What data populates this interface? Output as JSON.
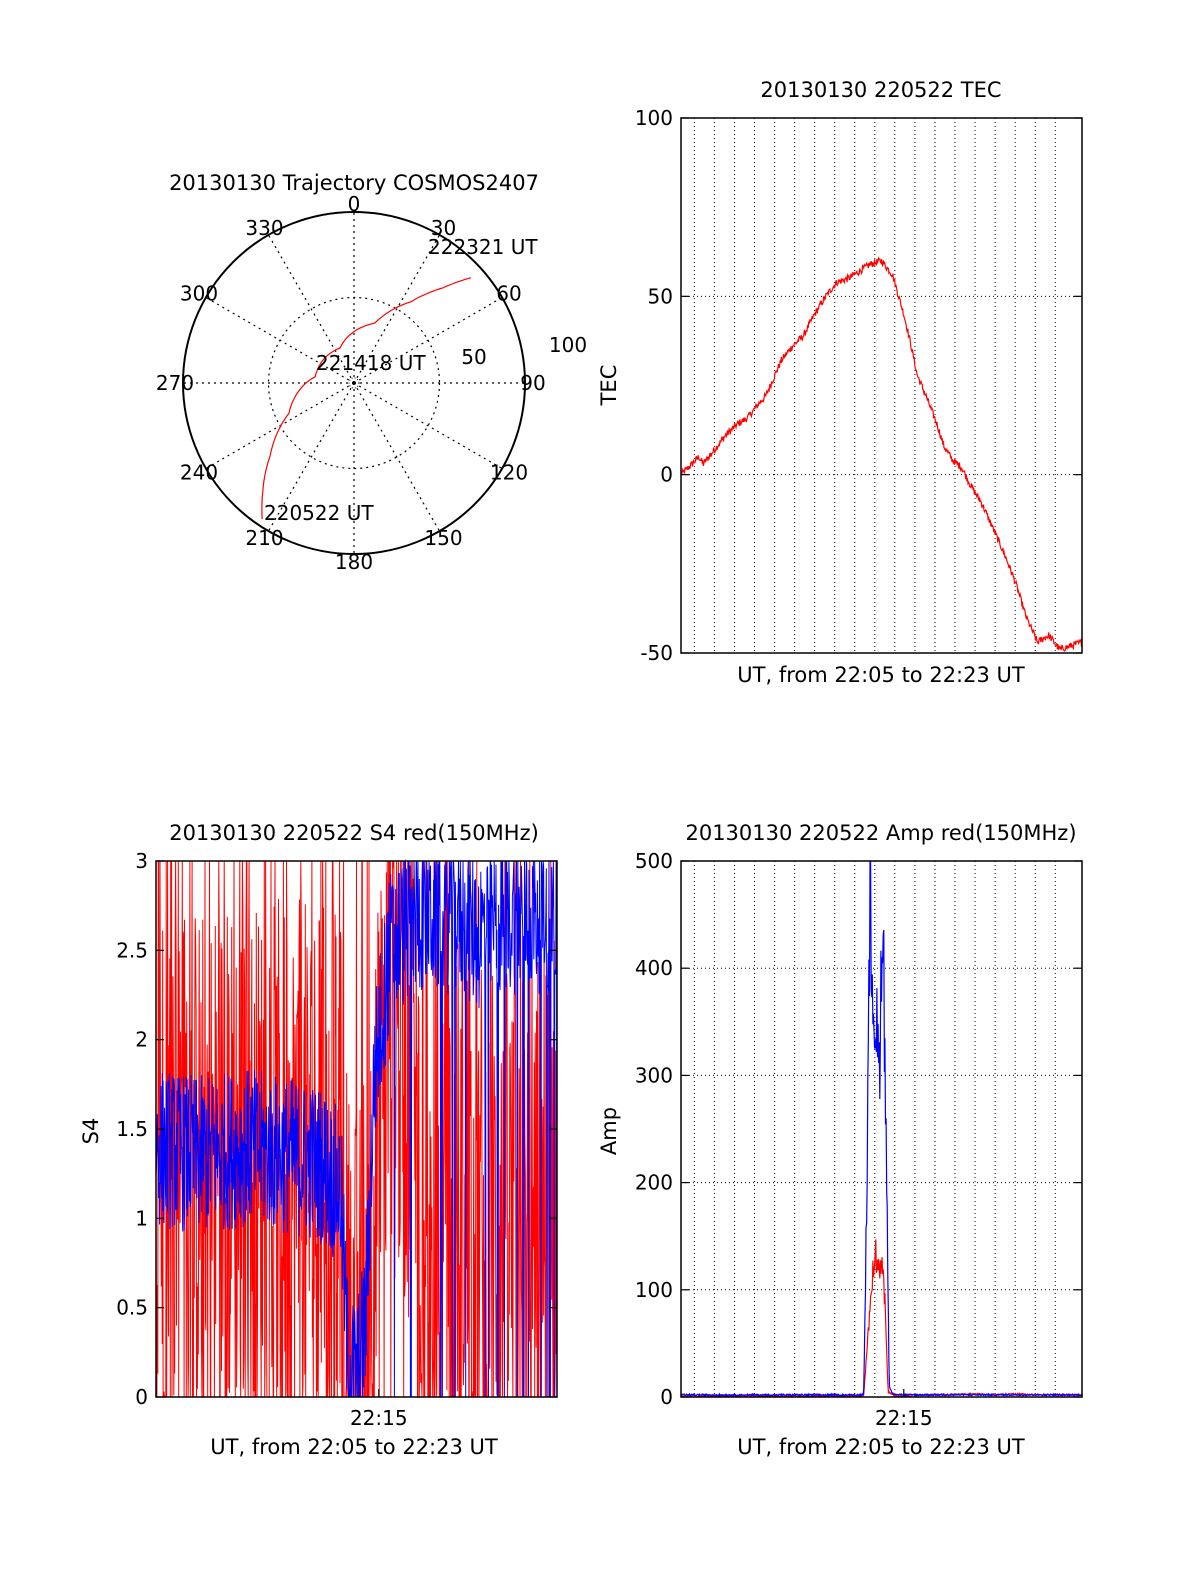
{
  "colors": {
    "red": "#ff0000",
    "blue": "#0000ff",
    "axis": "#000000",
    "grid": "#000000"
  },
  "chart_data": [
    {
      "id": "trajectory",
      "type": "polar",
      "title": "20130130 Trajectory COSMOS2407",
      "azimuth_labels": [
        "0",
        "30",
        "60",
        "90",
        "120",
        "150",
        "180",
        "210",
        "240",
        "270",
        "300",
        "330"
      ],
      "ring_labels": [
        "50",
        "100"
      ],
      "r_max": 100,
      "series": [
        {
          "color": "red",
          "points": [
            {
              "az": 214,
              "r": 96
            },
            {
              "az": 220,
              "r": 83
            },
            {
              "az": 229,
              "r": 65
            },
            {
              "az": 245,
              "r": 42
            },
            {
              "az": 279,
              "r": 23
            },
            {
              "az": 338,
              "r": 22
            },
            {
              "az": 19,
              "r": 37
            },
            {
              "az": 35,
              "r": 58
            },
            {
              "az": 43,
              "r": 76
            },
            {
              "az": 48,
              "r": 92
            }
          ]
        }
      ],
      "annotations": [
        {
          "text": "222321 UT",
          "at": {
            "az": 44,
            "r": 95
          }
        },
        {
          "text": "221418 UT",
          "at": {
            "az": 84,
            "r": 14
          }
        },
        {
          "text": "220522 UT",
          "at": {
            "az": 200,
            "r": 102
          }
        }
      ]
    },
    {
      "id": "tec",
      "type": "line",
      "title": "20130130 220522 TEC",
      "xlabel": "UT, from 22:05 to 22:23 UT",
      "ylabel": "TEC",
      "xlim": [
        0,
        18
      ],
      "ylim": [
        -50,
        100
      ],
      "yticks": [
        -50,
        0,
        50,
        100
      ],
      "xticks": [],
      "xgrid": [
        0.6,
        1.5,
        2.4,
        3.3,
        4.2,
        5.1,
        6.0,
        6.9,
        7.8,
        8.7,
        9.6,
        10.5,
        11.4,
        12.3,
        13.2,
        14.1,
        15.0,
        15.9,
        16.8
      ],
      "series": [
        {
          "color": "red",
          "x": [
            0,
            0.5,
            0.8,
            1.0,
            1.5,
            2.0,
            2.5,
            3.0,
            3.5,
            3.8,
            4.5,
            5.0,
            5.5,
            6.0,
            6.5,
            7.0,
            7.5,
            8.0,
            8.5,
            9.0,
            9.5,
            10.0,
            10.3,
            10.6,
            11.0,
            11.5,
            11.8,
            12.2,
            12.6,
            13.0,
            13.5,
            14.0,
            14.5,
            15.0,
            15.5,
            16.0,
            16.5,
            17.0,
            17.5,
            18.0
          ],
          "y": [
            0,
            3,
            5,
            3,
            7,
            11,
            14,
            16,
            20,
            22,
            32,
            36,
            39,
            45,
            50,
            54,
            55,
            57,
            59,
            60,
            56,
            45,
            37,
            28,
            22,
            14,
            8,
            4,
            2,
            -3,
            -8,
            -15,
            -22,
            -30,
            -40,
            -47,
            -45,
            -49,
            -48,
            -47
          ],
          "noise": 1.0
        }
      ]
    },
    {
      "id": "s4",
      "type": "line",
      "title": "20130130 220522 S4 red(150MHz)",
      "xlabel": "UT, from 22:05 to 22:23 UT",
      "ylabel": "S4",
      "xlim": [
        0,
        18
      ],
      "ylim": [
        0,
        3
      ],
      "yticks": [
        0,
        0.5,
        1,
        1.5,
        2,
        2.5,
        3
      ],
      "xticks": [
        {
          "value": 10,
          "label": "22:15"
        }
      ],
      "series": [
        {
          "color": "red",
          "x": [
            0,
            2,
            4,
            6,
            7.5,
            8.3,
            8.6,
            9.0,
            9.4,
            9.8,
            10.5,
            11.5,
            12.5,
            13.5,
            14.5,
            15.5,
            16.5,
            18
          ],
          "y": [
            1.3,
            1.3,
            1.3,
            1.3,
            1.3,
            1.2,
            0.3,
            0.15,
            0.5,
            1.0,
            2.2,
            1.8,
            0.5,
            1.2,
            1.0,
            0.9,
            1.0,
            1.2
          ],
          "noise": 1.5
        },
        {
          "color": "blue",
          "x": [
            0,
            2,
            4,
            6,
            7.5,
            8.3,
            8.6,
            9.0,
            9.4,
            9.8,
            10.5,
            11.5,
            12.5,
            13.5,
            14.5,
            15.5,
            16.5,
            18
          ],
          "y": [
            1.4,
            1.35,
            1.4,
            1.35,
            1.3,
            1.15,
            0.2,
            0.1,
            0.4,
            1.8,
            2.5,
            2.7,
            2.7,
            2.7,
            2.6,
            2.7,
            2.7,
            2.7
          ],
          "noise": 0.45
        }
      ]
    },
    {
      "id": "amp",
      "type": "line",
      "title": "20130130 220522 Amp red(150MHz)",
      "xlabel": "UT, from 22:05 to 22:23 UT",
      "ylabel": "Amp",
      "xlim": [
        0,
        18
      ],
      "ylim": [
        0,
        500
      ],
      "yticks": [
        0,
        100,
        200,
        300,
        400,
        500
      ],
      "xticks": [
        {
          "value": 10,
          "label": "22:15"
        }
      ],
      "xgrid": [
        0.6,
        1.5,
        2.4,
        3.3,
        4.2,
        5.1,
        6.0,
        6.9,
        7.8,
        8.7,
        9.6,
        10.5,
        11.4,
        12.3,
        13.2,
        14.1,
        15.0,
        15.9,
        16.8
      ],
      "series": [
        {
          "color": "red",
          "x": [
            0,
            8.0,
            8.2,
            8.4,
            8.55,
            8.7,
            8.85,
            9.0,
            9.15,
            9.3,
            9.6,
            10.0,
            11.0,
            12.0,
            13.0,
            14.0,
            15.0,
            16.0,
            17.0,
            18.0
          ],
          "y": [
            1,
            1,
            1,
            60,
            100,
            140,
            120,
            130,
            90,
            5,
            1,
            1,
            2,
            2,
            3,
            2,
            3,
            2,
            2,
            2
          ],
          "noise": 0.08
        },
        {
          "color": "blue",
          "x": [
            0,
            2.0,
            4.0,
            6.0,
            8.0,
            8.2,
            8.35,
            8.5,
            8.6,
            8.75,
            8.9,
            9.05,
            9.2,
            9.35,
            9.5,
            10.0,
            12.0,
            14.0,
            16.0,
            18.0
          ],
          "y": [
            2,
            2,
            2,
            2,
            2,
            3,
            200,
            480,
            380,
            350,
            300,
            470,
            250,
            10,
            3,
            2,
            2,
            2,
            2,
            2
          ],
          "noise": 0.1
        }
      ]
    }
  ]
}
